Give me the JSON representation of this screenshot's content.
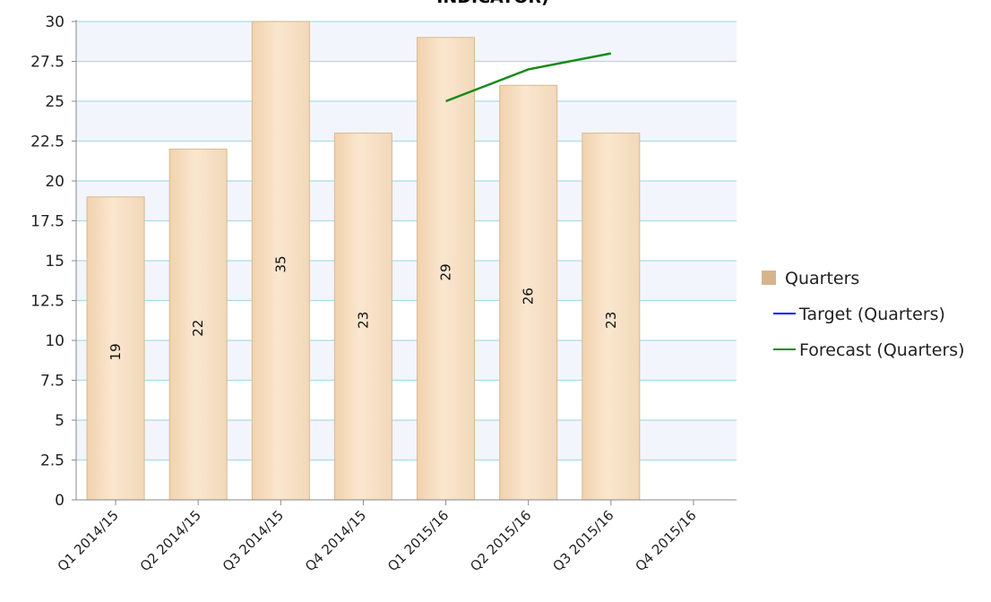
{
  "chart_data": {
    "type": "bar",
    "title": "INDICATOR)",
    "categories": [
      "Q1 2014/15",
      "Q2 2014/15",
      "Q3 2014/15",
      "Q4 2014/15",
      "Q1 2015/16",
      "Q2 2015/16",
      "Q3 2015/16",
      "Q4 2015/16"
    ],
    "series": [
      {
        "name": "Quarters",
        "type": "bar",
        "values": [
          19,
          22,
          35,
          23,
          29,
          26,
          23,
          null
        ],
        "value_labels": [
          "19",
          "22",
          "35",
          "23",
          "29",
          "26",
          "23",
          ""
        ],
        "color": "#f4d9b8"
      },
      {
        "name": "Target (Quarters)",
        "type": "line",
        "values": [
          null,
          null,
          null,
          null,
          null,
          null,
          null,
          null
        ],
        "color": "#0000ff"
      },
      {
        "name": "Forecast (Quarters)",
        "type": "line",
        "values": [
          null,
          null,
          null,
          null,
          25,
          27,
          28,
          null
        ],
        "color": "#1a8a1a"
      }
    ],
    "ylim": [
      0,
      30
    ],
    "yticks": [
      "0",
      "2.5",
      "5",
      "7.5",
      "10",
      "12.5",
      "15",
      "17.5",
      "20",
      "22.5",
      "25",
      "27.5",
      "30"
    ],
    "grid": true,
    "legend_position": "right",
    "colors": {
      "grid": "#a8dde6",
      "band": "#f3f5fd",
      "axis": "#888888",
      "bar_edge": "#d8b990"
    }
  }
}
